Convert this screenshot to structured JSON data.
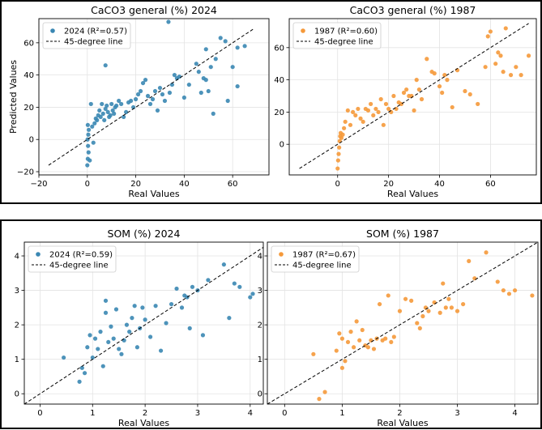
{
  "chart_data": [
    {
      "type": "scatter",
      "title": "CaCO3 general (%) 2024",
      "xlabel": "Real Values",
      "ylabel": "Predicted Values",
      "xlim": [
        -20,
        75
      ],
      "ylim": [
        -22,
        75
      ],
      "xticks": [
        -20,
        0,
        20,
        40,
        60
      ],
      "yticks": [
        -20,
        0,
        20,
        40,
        60
      ],
      "grid": true,
      "legend_position": "top-left",
      "legend": [
        "2024 (R²=0.57)",
        "45-degree line"
      ],
      "line_range": [
        -16,
        69
      ],
      "color": "#3a87b3",
      "series": [
        {
          "name": "2024 (R²=0.57)",
          "x": [
            0,
            0.2,
            0.5,
            0.3,
            0.1,
            0.4,
            0.6,
            0.2,
            1,
            1.5,
            2,
            2.5,
            3,
            3.5,
            4,
            4.5,
            5,
            5.5,
            6,
            6.5,
            7,
            7.5,
            8,
            8.5,
            9,
            9.5,
            10,
            10.5,
            11,
            11.5,
            12,
            13,
            14,
            15,
            16,
            17,
            18,
            19,
            20,
            21,
            22,
            23,
            24,
            25,
            26,
            27,
            28,
            29,
            30,
            31,
            32,
            34,
            35,
            36,
            37,
            38,
            40,
            42,
            45,
            46,
            47,
            48,
            49,
            50,
            51,
            52,
            53,
            55,
            57,
            58,
            60,
            62,
            65,
            7.5,
            33.5,
            49,
            62
          ],
          "y": [
            -16,
            -12,
            -8,
            -4,
            0,
            3,
            6,
            9,
            -13,
            22,
            8,
            -2,
            10,
            13,
            12,
            15,
            18,
            14,
            22,
            16,
            12,
            19,
            21,
            17,
            14,
            15,
            22,
            18,
            16,
            20,
            21,
            24,
            22,
            14,
            17,
            23,
            24,
            20,
            25,
            28,
            30,
            35,
            37,
            27,
            22,
            25,
            30,
            18,
            32,
            28,
            24,
            29,
            34,
            40,
            38,
            39,
            26,
            34,
            47,
            42,
            29,
            38,
            37,
            30,
            45,
            16,
            50,
            63,
            61,
            24,
            45,
            57,
            58,
            46,
            73,
            56,
            33
          ]
        }
      ]
    },
    {
      "type": "scatter",
      "title": "CaCO3 general (%) 1987",
      "xlabel": "Real Values",
      "ylabel": "",
      "xlim": [
        -19,
        78
      ],
      "ylim": [
        -19,
        78
      ],
      "xticks": [
        0,
        20,
        40,
        60
      ],
      "yticks": [
        0,
        20,
        40,
        60
      ],
      "grid": true,
      "legend_position": "top-left",
      "legend": [
        "1987 (R²=0.60)",
        "45-degree line"
      ],
      "line_range": [
        -15,
        75
      ],
      "color": "#f5993a",
      "series": [
        {
          "name": "1987 (R²=0.60)",
          "x": [
            0,
            0.2,
            0.4,
            0.6,
            0.8,
            1,
            1.2,
            1.5,
            2,
            2.5,
            3,
            4,
            5,
            6,
            7,
            8,
            9,
            10,
            11,
            12,
            13,
            14,
            15,
            16,
            17,
            18,
            19,
            20,
            21,
            22,
            23,
            24,
            25,
            26,
            27,
            28,
            29,
            30,
            31,
            32,
            33,
            35,
            37,
            38,
            40,
            41,
            42,
            43,
            45,
            47,
            50,
            52,
            55,
            58,
            59,
            60,
            62,
            63,
            64,
            65,
            66,
            68,
            70,
            72,
            75
          ],
          "y": [
            -15,
            -10,
            -6,
            -2,
            2,
            5,
            7,
            4,
            6,
            10,
            14,
            21,
            12,
            20,
            18,
            22,
            16,
            14,
            22,
            21,
            25,
            18,
            22,
            20,
            28,
            12,
            25,
            22,
            20,
            30,
            22,
            26,
            25,
            32,
            34,
            30,
            30,
            21,
            40,
            34,
            28,
            53,
            45,
            44,
            36,
            32,
            43,
            40,
            23,
            46,
            33,
            31,
            25,
            48,
            67,
            70,
            50,
            57,
            55,
            45,
            72,
            43,
            48,
            43,
            55
          ]
        }
      ]
    },
    {
      "type": "scatter",
      "title": "SOM (%) 2024",
      "xlabel": "Real Values",
      "ylabel": "Predicted Values",
      "xlim": [
        -0.3,
        4.25
      ],
      "ylim": [
        -0.3,
        4.4
      ],
      "xticks": [
        0,
        1,
        2,
        3,
        4
      ],
      "yticks": [
        0,
        1,
        2,
        3,
        4
      ],
      "grid": true,
      "legend_position": "top-left",
      "legend": [
        "2024 (R²=0.59)",
        "45-degree line"
      ],
      "line_range": [
        -0.3,
        4.4
      ],
      "color": "#3a87b3",
      "series": [
        {
          "name": "2024 (R²=0.59)",
          "x": [
            0.45,
            0.75,
            0.8,
            0.9,
            0.95,
            1,
            1.05,
            1.1,
            1.15,
            1.2,
            1.25,
            1.3,
            1.35,
            1.4,
            1.45,
            1.5,
            1.55,
            1.6,
            1.65,
            1.7,
            1.75,
            1.8,
            1.85,
            1.9,
            1.95,
            2,
            2.1,
            2.2,
            2.3,
            2.4,
            2.5,
            2.6,
            2.7,
            2.75,
            2.8,
            2.85,
            2.9,
            3,
            3.1,
            3.2,
            3.5,
            3.6,
            3.7,
            3.8,
            4,
            4.05,
            0.85,
            1.25
          ],
          "y": [
            1.05,
            0.35,
            0.75,
            1.35,
            1.7,
            1.05,
            1.6,
            1.3,
            1.8,
            0.8,
            2.35,
            1.5,
            1.95,
            1.6,
            2.45,
            1.3,
            1.15,
            1.55,
            2,
            1.8,
            2.2,
            2.55,
            1.35,
            1.9,
            2.5,
            2.15,
            1.65,
            2.55,
            1.25,
            2.05,
            2.6,
            3.05,
            2.5,
            2.85,
            2.8,
            1.9,
            3.1,
            3,
            1.7,
            3.3,
            3.75,
            2.2,
            3.2,
            3.1,
            2.8,
            2.9,
            0.6,
            2.7
          ]
        }
      ]
    },
    {
      "type": "scatter",
      "title": "SOM (%) 1987",
      "xlabel": "Real Values",
      "ylabel": "",
      "xlim": [
        -0.3,
        4.4
      ],
      "ylim": [
        -0.3,
        4.4
      ],
      "xticks": [
        0,
        1,
        2,
        3,
        4
      ],
      "yticks": [
        0,
        1,
        2,
        3,
        4
      ],
      "grid": true,
      "legend_position": "top-left",
      "legend": [
        "1987 (R²=0.67)",
        "45-degree line"
      ],
      "line_range": [
        -0.3,
        4.4
      ],
      "color": "#f5993a",
      "series": [
        {
          "name": "1987 (R²=0.67)",
          "x": [
            0.5,
            0.6,
            0.7,
            0.9,
            0.95,
            1,
            1.05,
            1.1,
            1.15,
            1.2,
            1.25,
            1.3,
            1.35,
            1.4,
            1.45,
            1.5,
            1.55,
            1.6,
            1.65,
            1.7,
            1.75,
            1.8,
            1.85,
            1.9,
            2,
            2.1,
            2.2,
            2.3,
            2.35,
            2.4,
            2.5,
            2.6,
            2.7,
            2.75,
            2.8,
            2.85,
            2.9,
            3,
            3.1,
            3.2,
            3.3,
            3.5,
            3.7,
            3.8,
            3.9,
            4,
            4.3,
            1.0,
            2.45
          ],
          "y": [
            1.15,
            -0.15,
            0.05,
            1.25,
            1.75,
            1.6,
            0.95,
            1.5,
            1.8,
            1.35,
            2.1,
            1.55,
            1.85,
            1.4,
            1.35,
            1.55,
            1.3,
            1.6,
            2.6,
            1.55,
            1.6,
            2.85,
            1.5,
            1.65,
            2.4,
            2.75,
            2.7,
            2.05,
            1.9,
            2.25,
            2.4,
            2.65,
            2.35,
            3.2,
            2.5,
            2.75,
            2.5,
            2.4,
            2.6,
            3.85,
            3.35,
            4.1,
            3.25,
            3.0,
            2.9,
            3.0,
            2.85,
            0.75,
            2.5
          ]
        }
      ]
    }
  ]
}
